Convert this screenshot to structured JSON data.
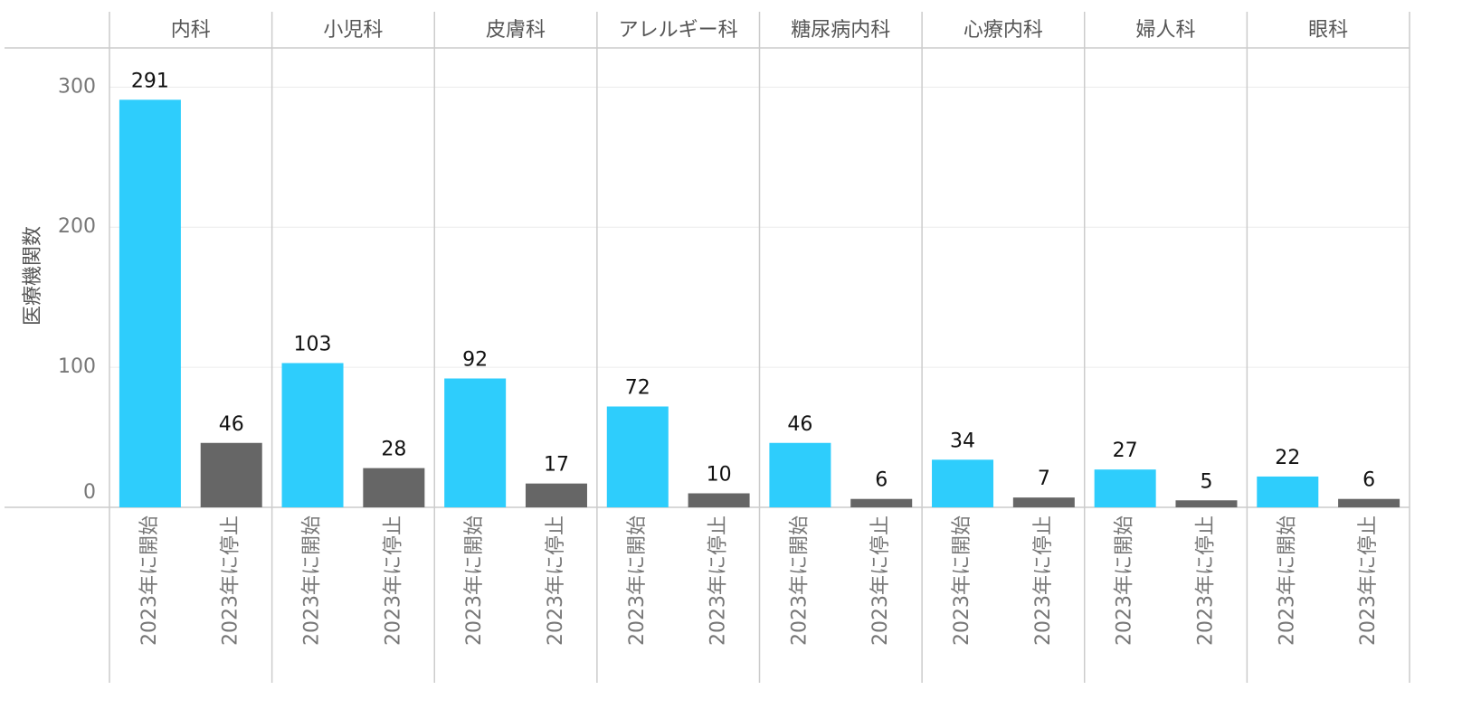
{
  "chart_data": {
    "type": "bar",
    "y_label": "医療機関数",
    "categories": [
      "内科",
      "小児科",
      "皮膚科",
      "アレルギー科",
      "糖尿病内科",
      "心療内科",
      "婦人科",
      "眼科"
    ],
    "series": [
      {
        "name": "2023年に開始",
        "color": "#2ecdfc",
        "values": [
          291,
          103,
          92,
          72,
          46,
          34,
          27,
          22
        ]
      },
      {
        "name": "2023年に停止",
        "color": "#666666",
        "values": [
          46,
          28,
          17,
          10,
          6,
          7,
          5,
          6
        ]
      }
    ],
    "ylim": [
      0,
      328
    ],
    "yticks": [
      0,
      100,
      200,
      300
    ],
    "grid": true
  }
}
